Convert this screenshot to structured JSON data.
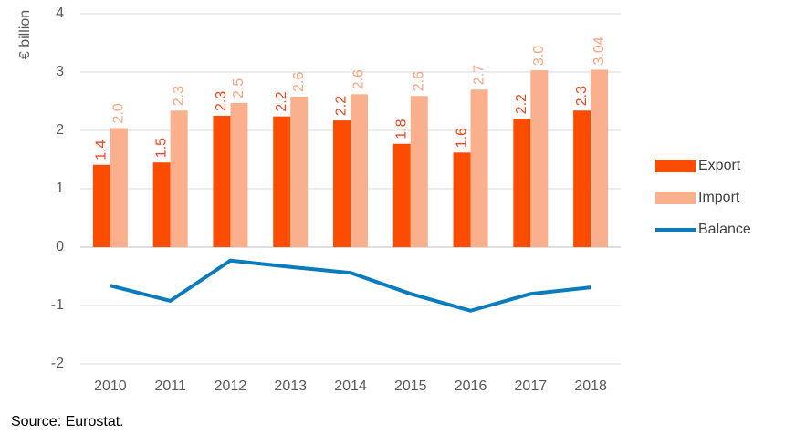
{
  "chart_data": {
    "type": "bar_line",
    "y_label": "€ billion",
    "source": "Source: Eurostat.",
    "categories": [
      "2010",
      "2011",
      "2012",
      "2013",
      "2014",
      "2015",
      "2016",
      "2017",
      "2018"
    ],
    "series": [
      {
        "name": "Export",
        "type": "bar",
        "color": "#fc4c02",
        "label_color": "#f0461e",
        "values": [
          1.41,
          1.45,
          2.25,
          2.24,
          2.17,
          1.77,
          1.62,
          2.2,
          2.34
        ],
        "value_labels": [
          "1.4",
          "1.5",
          "2.3",
          "2.2",
          "2.2",
          "1.8",
          "1.6",
          "2.2",
          "2.3"
        ]
      },
      {
        "name": "Import",
        "type": "bar",
        "color": "#fbb08d",
        "label_color": "#f9a47e",
        "values": [
          2.04,
          2.34,
          2.47,
          2.58,
          2.62,
          2.59,
          2.7,
          3.03,
          3.04
        ],
        "value_labels": [
          "2.0",
          "2.3",
          "2.5",
          "2.6",
          "2.6",
          "2.6",
          "2.7",
          "3.0",
          "3.04"
        ]
      },
      {
        "name": "Balance",
        "type": "line",
        "color": "#0a7bbd",
        "values": [
          -0.66,
          -0.92,
          -0.23,
          -0.34,
          -0.44,
          -0.8,
          -1.09,
          -0.8,
          -0.69
        ]
      }
    ],
    "ylim": [
      -2,
      4
    ],
    "yticks": [
      -2,
      -1,
      0,
      1,
      2,
      3,
      4
    ],
    "grid": true,
    "legend": "right"
  }
}
